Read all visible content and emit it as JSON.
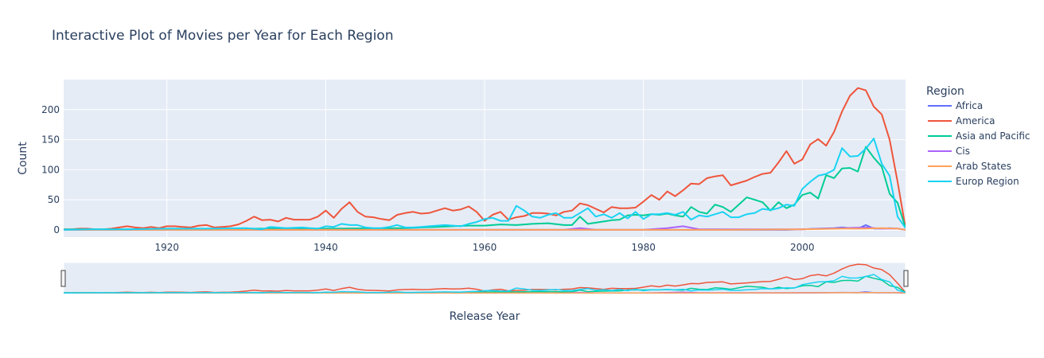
{
  "chart_data": {
    "type": "line",
    "title": "Interactive Plot of Movies per Year for Each Region",
    "xlabel": "Release Year",
    "ylabel": "Count",
    "xlim": [
      1907,
      2013
    ],
    "ylim": [
      -12,
      250
    ],
    "xticks": [
      1920,
      1940,
      1960,
      1980,
      2000
    ],
    "yticks": [
      0,
      50,
      100,
      150,
      200
    ],
    "grid": true,
    "legend": {
      "title": "Region",
      "placement": "right"
    },
    "range_slider": true,
    "series": [
      {
        "name": "Africa",
        "color": "#636efa",
        "x": [
          1907,
          1950,
          1970,
          1980,
          1990,
          1998,
          2000,
          2002,
          2004,
          2005,
          2006,
          2007,
          2008,
          2009,
          2010,
          2011,
          2012,
          2013
        ],
        "y": [
          0,
          0,
          0,
          0,
          0,
          0,
          1,
          2,
          3,
          4,
          3,
          2,
          8,
          2,
          2,
          3,
          2,
          0
        ]
      },
      {
        "name": "America",
        "color": "#ef553b",
        "x": [
          1907,
          1908,
          1909,
          1910,
          1911,
          1912,
          1913,
          1914,
          1915,
          1916,
          1917,
          1918,
          1919,
          1920,
          1921,
          1922,
          1923,
          1924,
          1925,
          1926,
          1927,
          1928,
          1929,
          1930,
          1931,
          1932,
          1933,
          1934,
          1935,
          1936,
          1937,
          1938,
          1939,
          1940,
          1941,
          1942,
          1943,
          1944,
          1945,
          1946,
          1947,
          1948,
          1949,
          1950,
          1951,
          1952,
          1953,
          1954,
          1955,
          1956,
          1957,
          1958,
          1959,
          1960,
          1961,
          1962,
          1963,
          1964,
          1965,
          1966,
          1967,
          1968,
          1969,
          1970,
          1971,
          1972,
          1973,
          1974,
          1975,
          1976,
          1977,
          1978,
          1979,
          1980,
          1981,
          1982,
          1983,
          1984,
          1985,
          1986,
          1987,
          1988,
          1989,
          1990,
          1991,
          1992,
          1993,
          1994,
          1995,
          1996,
          1997,
          1998,
          1999,
          2000,
          2001,
          2002,
          2003,
          2004,
          2005,
          2006,
          2007,
          2008,
          2009,
          2010,
          2011,
          2012,
          2013
        ],
        "y": [
          1,
          1,
          2,
          2,
          1,
          1,
          2,
          4,
          6,
          4,
          3,
          5,
          3,
          6,
          6,
          5,
          4,
          7,
          8,
          4,
          5,
          6,
          9,
          15,
          22,
          16,
          17,
          14,
          20,
          17,
          17,
          17,
          22,
          32,
          20,
          35,
          46,
          30,
          22,
          21,
          18,
          16,
          25,
          28,
          30,
          27,
          28,
          32,
          36,
          32,
          34,
          39,
          30,
          15,
          25,
          30,
          17,
          21,
          23,
          28,
          28,
          27,
          24,
          30,
          32,
          44,
          41,
          35,
          29,
          38,
          36,
          36,
          37,
          47,
          58,
          50,
          64,
          56,
          66,
          77,
          76,
          86,
          89,
          91,
          74,
          78,
          82,
          88,
          93,
          95,
          112,
          131,
          110,
          117,
          142,
          151,
          140,
          163,
          197,
          223,
          236,
          232,
          205,
          192,
          150,
          80,
          3
        ]
      },
      {
        "name": "Asia and Pacific",
        "color": "#00cc96",
        "x": [
          1907,
          1910,
          1920,
          1930,
          1940,
          1950,
          1952,
          1954,
          1956,
          1958,
          1960,
          1962,
          1964,
          1966,
          1968,
          1970,
          1971,
          1972,
          1973,
          1974,
          1975,
          1976,
          1977,
          1978,
          1979,
          1980,
          1981,
          1982,
          1983,
          1984,
          1985,
          1986,
          1987,
          1988,
          1989,
          1990,
          1991,
          1992,
          1993,
          1994,
          1995,
          1996,
          1997,
          1998,
          1999,
          2000,
          2001,
          2002,
          2003,
          2004,
          2005,
          2006,
          2007,
          2008,
          2009,
          2010,
          2011,
          2012,
          2013
        ],
        "y": [
          1,
          1,
          1,
          2,
          2,
          3,
          4,
          5,
          6,
          7,
          7,
          9,
          8,
          10,
          11,
          8,
          8,
          22,
          10,
          12,
          14,
          16,
          17,
          24,
          25,
          24,
          26,
          25,
          27,
          24,
          22,
          38,
          30,
          27,
          42,
          38,
          30,
          42,
          54,
          50,
          46,
          32,
          46,
          36,
          42,
          58,
          62,
          52,
          91,
          86,
          102,
          103,
          97,
          138,
          120,
          105,
          60,
          45,
          3
        ]
      },
      {
        "name": "Cis",
        "color": "#ab63fa",
        "x": [
          1907,
          1960,
          1970,
          1972,
          1974,
          1980,
          1983,
          1985,
          1987,
          1990,
          2000,
          2005,
          2008,
          2010,
          2012,
          2013
        ],
        "y": [
          0,
          0,
          0,
          3,
          0,
          0,
          3,
          6,
          1,
          1,
          1,
          3,
          4,
          2,
          2,
          0
        ]
      },
      {
        "name": "Arab States",
        "color": "#ffa15a",
        "x": [
          1907,
          1950,
          1970,
          1990,
          2000,
          2005,
          2008,
          2010,
          2012,
          2013
        ],
        "y": [
          0,
          0,
          0,
          0,
          1,
          2,
          2,
          3,
          2,
          0
        ]
      },
      {
        "name": "Europ Region",
        "color": "#19d3f3",
        "x": [
          1907,
          1910,
          1915,
          1920,
          1925,
          1930,
          1932,
          1933,
          1935,
          1937,
          1938,
          1939,
          1940,
          1941,
          1942,
          1943,
          1944,
          1945,
          1946,
          1947,
          1948,
          1949,
          1950,
          1951,
          1952,
          1953,
          1954,
          1955,
          1956,
          1957,
          1958,
          1959,
          1960,
          1961,
          1962,
          1963,
          1964,
          1965,
          1966,
          1967,
          1968,
          1969,
          1970,
          1971,
          1972,
          1973,
          1974,
          1975,
          1976,
          1977,
          1978,
          1979,
          1980,
          1981,
          1982,
          1983,
          1984,
          1985,
          1986,
          1987,
          1988,
          1989,
          1990,
          1991,
          1992,
          1993,
          1994,
          1995,
          1996,
          1997,
          1998,
          1999,
          2000,
          2001,
          2002,
          2003,
          2004,
          2005,
          2006,
          2007,
          2008,
          2009,
          2010,
          2011,
          2012,
          2013
        ],
        "y": [
          0,
          1,
          1,
          2,
          2,
          3,
          1,
          5,
          3,
          4,
          3,
          2,
          6,
          5,
          10,
          8,
          8,
          4,
          3,
          3,
          5,
          8,
          4,
          4,
          5,
          6,
          7,
          8,
          7,
          6,
          10,
          13,
          18,
          20,
          15,
          15,
          40,
          32,
          22,
          20,
          25,
          28,
          20,
          20,
          28,
          36,
          22,
          26,
          20,
          28,
          19,
          30,
          18,
          26,
          26,
          28,
          25,
          30,
          17,
          24,
          22,
          26,
          30,
          21,
          21,
          26,
          28,
          35,
          33,
          36,
          42,
          40,
          68,
          80,
          90,
          93,
          100,
          136,
          122,
          123,
          135,
          152,
          110,
          90,
          22,
          3
        ]
      }
    ]
  }
}
